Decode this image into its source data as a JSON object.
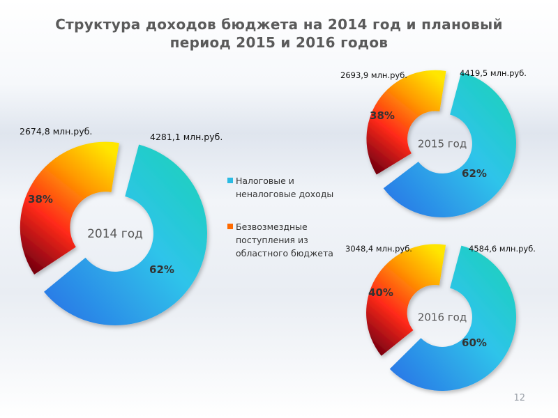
{
  "title_line1": "Структура доходов бюджета на 2014 год и плановый",
  "title_line2": "период 2015 и 2016 годов",
  "page_number": "12",
  "colors": {
    "tax_gradient": [
      "#2a7fe6",
      "#2fd5e6",
      "#18d3b3"
    ],
    "transfer_gradient": [
      "#7a0010",
      "#ff2a1a",
      "#ff9a00",
      "#ffe100"
    ]
  },
  "legend": [
    {
      "label": "Налоговые и неналоговые доходы",
      "color": "#2bbbe3"
    },
    {
      "label": "Безвозмездные поступления из областного бюджета",
      "color": "#ff6a00"
    }
  ],
  "chart_data": [
    {
      "type": "pie",
      "title": "2014 год",
      "categories": [
        "Налоговые и неналоговые доходы",
        "Безвозмездные поступления из областного бюджета"
      ],
      "values": [
        4281.1,
        2674.8
      ],
      "percent_labels": [
        "62%",
        "38%"
      ],
      "value_labels": [
        "4281,1 млн.руб.",
        "2674,8 млн.руб."
      ]
    },
    {
      "type": "pie",
      "title": "2015 год",
      "categories": [
        "Налоговые и неналоговые доходы",
        "Безвозмездные поступления из областного бюджета"
      ],
      "values": [
        4419.5,
        2693.9
      ],
      "percent_labels": [
        "62%",
        "38%"
      ],
      "value_labels": [
        "4419,5 млн.руб.",
        "2693,9 млн.руб."
      ]
    },
    {
      "type": "pie",
      "title": "2016 год",
      "categories": [
        "Налоговые и неналоговые доходы",
        "Безвозмездные поступления из областного бюджета"
      ],
      "values": [
        4584.6,
        3048.4
      ],
      "percent_labels": [
        "60%",
        "40%"
      ],
      "value_labels": [
        "4584,6 млн.руб.",
        "3048,4 млн.руб."
      ]
    }
  ]
}
